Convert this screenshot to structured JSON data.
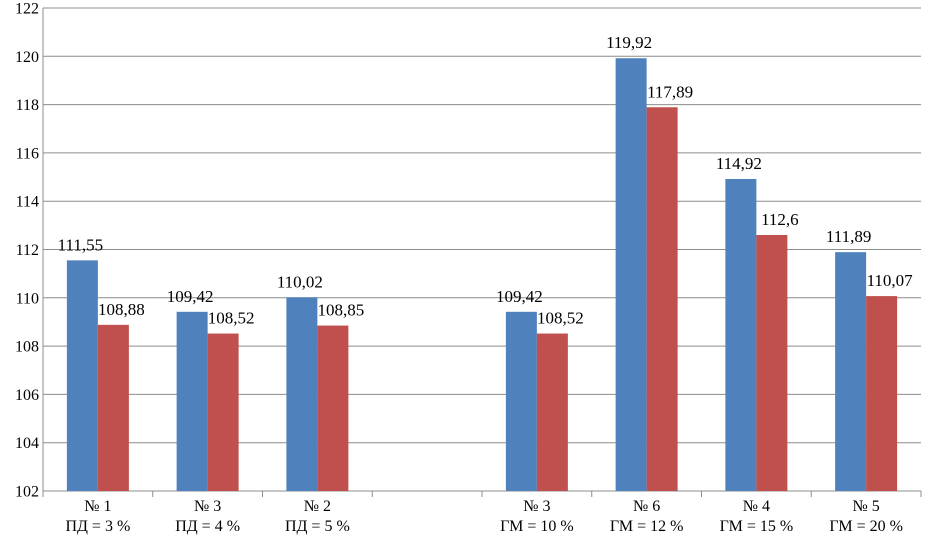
{
  "chart_data": {
    "type": "bar",
    "title": "",
    "xlabel": "",
    "ylabel": "",
    "ylim": [
      102,
      122
    ],
    "y_ticks": [
      "102",
      "104",
      "106",
      "108",
      "110",
      "112",
      "114",
      "116",
      "118",
      "120",
      "122"
    ],
    "grid": true,
    "legend": "none",
    "categories": [
      {
        "line1": "№ 1",
        "line2": "ПД = 3 %"
      },
      {
        "line1": "№ 3",
        "line2": "ПД = 4 %"
      },
      {
        "line1": "№ 2",
        "line2": "ПД = 5 %"
      },
      {
        "line1": "",
        "line2": ""
      },
      {
        "line1": "№ 3",
        "line2": "ГМ = 10 %"
      },
      {
        "line1": "№ 6",
        "line2": "ГМ = 12 %"
      },
      {
        "line1": "№ 4",
        "line2": "ГМ = 15 %"
      },
      {
        "line1": "№ 5",
        "line2": "ГМ = 20 %"
      }
    ],
    "series": [
      {
        "color": "#4f81bd",
        "values": [
          111.55,
          109.42,
          110.02,
          null,
          109.42,
          119.92,
          114.92,
          111.89
        ],
        "labels": [
          "111,55",
          "109,42",
          "110,02",
          "",
          "109,42",
          "119,92",
          "114,92",
          "111,89"
        ]
      },
      {
        "color": "#c0504d",
        "values": [
          108.88,
          108.52,
          108.85,
          null,
          108.52,
          117.89,
          112.6,
          110.07
        ],
        "labels": [
          "108,88",
          "108,52",
          "108,85",
          "",
          "108,52",
          "117,89",
          "112,6",
          "110,07"
        ]
      }
    ]
  }
}
